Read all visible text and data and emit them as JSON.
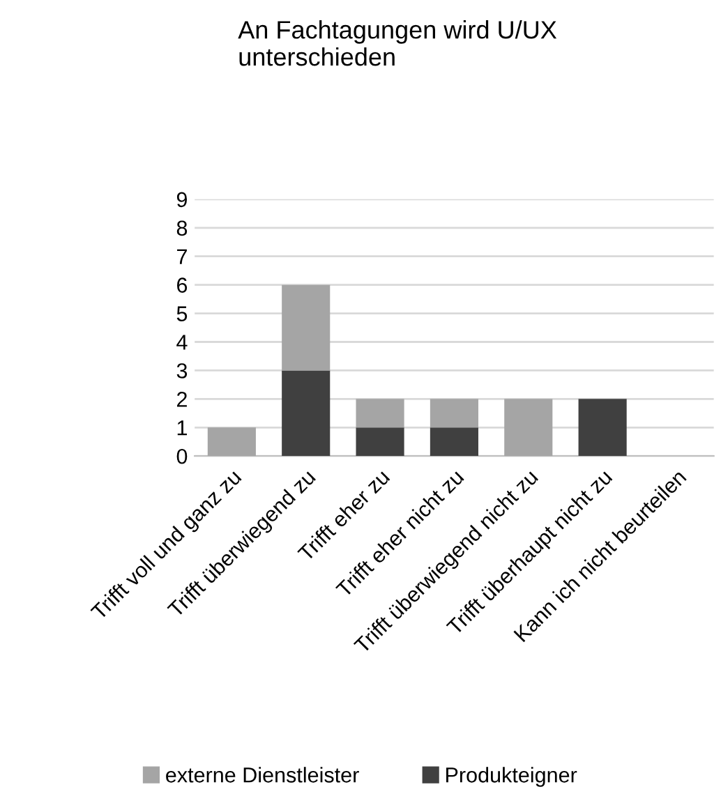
{
  "chart_data": {
    "type": "bar",
    "title": "An Fachtagungen wird U/UX\nunterschieden",
    "stacked": true,
    "categories": [
      "Trifft voll und ganz zu",
      "Trifft überwiegend zu",
      "Trifft eher zu",
      "Trifft eher nicht zu",
      "Trifft überwiegend nicht zu",
      "Trifft überhaupt nicht zu",
      "Kann ich nicht beurteilen"
    ],
    "series": [
      {
        "name": "Produkteigner",
        "color": "#404040",
        "values": [
          0,
          3,
          1,
          1,
          0,
          2,
          0
        ]
      },
      {
        "name": "externe Dienstleister",
        "color": "#a5a5a5",
        "values": [
          1,
          3,
          1,
          1,
          2,
          0,
          0
        ]
      }
    ],
    "ylim": [
      0,
      9
    ],
    "yticks": [
      0,
      1,
      2,
      3,
      4,
      5,
      6,
      7,
      8,
      9
    ],
    "grid": "y",
    "legend": "bottom"
  }
}
